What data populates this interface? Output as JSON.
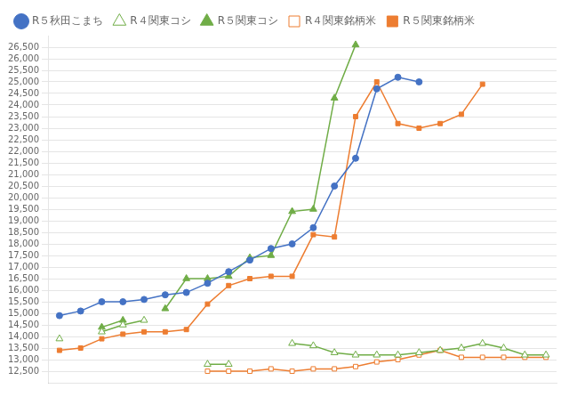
{
  "chart_data": {
    "type": "line",
    "categories": [
      null,
      null,
      null,
      null,
      null,
      null,
      null,
      null,
      null,
      null,
      null,
      null,
      null,
      null,
      null,
      null,
      null,
      null,
      null,
      null,
      null,
      null,
      null,
      null
    ],
    "series": [
      {
        "name": "R５秋田こまち",
        "color": "#4472C4",
        "marker": "circle",
        "values": [
          14900,
          15100,
          15500,
          15500,
          15600,
          15800,
          15900,
          16300,
          16800,
          17300,
          17800,
          18000,
          18700,
          20500,
          21700,
          24700,
          25200,
          25000,
          null,
          null,
          null,
          null,
          null,
          null
        ]
      },
      {
        "name": "R４関東コシ",
        "color": "#70AD47",
        "marker": "triangle_open",
        "values": [
          13900,
          null,
          14200,
          14500,
          14700,
          null,
          null,
          12800,
          12800,
          null,
          null,
          13700,
          13600,
          13300,
          13200,
          13200,
          13200,
          13300,
          13400,
          13500,
          13700,
          13500,
          13200,
          13200
        ]
      },
      {
        "name": "R５関東コシ",
        "color": "#70AD47",
        "marker": "triangle",
        "values": [
          null,
          null,
          14400,
          14700,
          null,
          15200,
          16500,
          16500,
          16600,
          17400,
          17500,
          19400,
          19500,
          24300,
          26600,
          null,
          null,
          null,
          null,
          null,
          null,
          null,
          null,
          null
        ]
      },
      {
        "name": "R４関東銘柄米",
        "color": "#ED7D31",
        "marker": "square_open",
        "values": [
          null,
          null,
          null,
          null,
          null,
          null,
          null,
          12500,
          12500,
          12500,
          12600,
          12500,
          12600,
          12600,
          12700,
          12900,
          13000,
          13200,
          13400,
          13100,
          13100,
          13100,
          13100,
          13100
        ]
      },
      {
        "name": "R５関東銘柄米",
        "color": "#ED7D31",
        "marker": "square",
        "values": [
          13400,
          13500,
          13900,
          14100,
          14200,
          14200,
          14300,
          15400,
          16200,
          16500,
          16600,
          16600,
          18400,
          18300,
          23500,
          25000,
          23200,
          23000,
          23200,
          23600,
          24900,
          null,
          null,
          null
        ]
      }
    ],
    "ylim": [
      12000,
      27000
    ],
    "yticks": [
      {
        "value": 12500,
        "label": "12,500"
      },
      {
        "value": 13000,
        "label": "13,000"
      },
      {
        "value": 13500,
        "label": "13,500"
      },
      {
        "value": 14000,
        "label": "14,000"
      },
      {
        "value": 14500,
        "label": "14,500"
      },
      {
        "value": 15000,
        "label": "15,000"
      },
      {
        "value": 15500,
        "label": "15,500"
      },
      {
        "value": 16000,
        "label": "16,000"
      },
      {
        "value": 16500,
        "label": "16,500"
      },
      {
        "value": 17000,
        "label": "17,000"
      },
      {
        "value": 17500,
        "label": "17,500"
      },
      {
        "value": 18000,
        "label": "18,000"
      },
      {
        "value": 18500,
        "label": "18,500"
      },
      {
        "value": 19000,
        "label": "19,000"
      },
      {
        "value": 19500,
        "label": "19,500"
      },
      {
        "value": 20000,
        "label": "20,000"
      },
      {
        "value": 20500,
        "label": "20,500"
      },
      {
        "value": 21000,
        "label": "21,000"
      },
      {
        "value": 21500,
        "label": "21,500"
      },
      {
        "value": 22000,
        "label": "22,000"
      },
      {
        "value": 22500,
        "label": "22,500"
      },
      {
        "value": 23000,
        "label": "23,000"
      },
      {
        "value": 23500,
        "label": "23,500"
      },
      {
        "value": 24000,
        "label": "24,000"
      },
      {
        "value": 24500,
        "label": "24,500"
      },
      {
        "value": 25000,
        "label": "25,000"
      },
      {
        "value": 25500,
        "label": "25,500"
      },
      {
        "value": 26000,
        "label": "26,000"
      },
      {
        "value": 26500,
        "label": "26,500"
      }
    ],
    "grid": true,
    "legend": "upper left",
    "tick_labels": "y"
  }
}
